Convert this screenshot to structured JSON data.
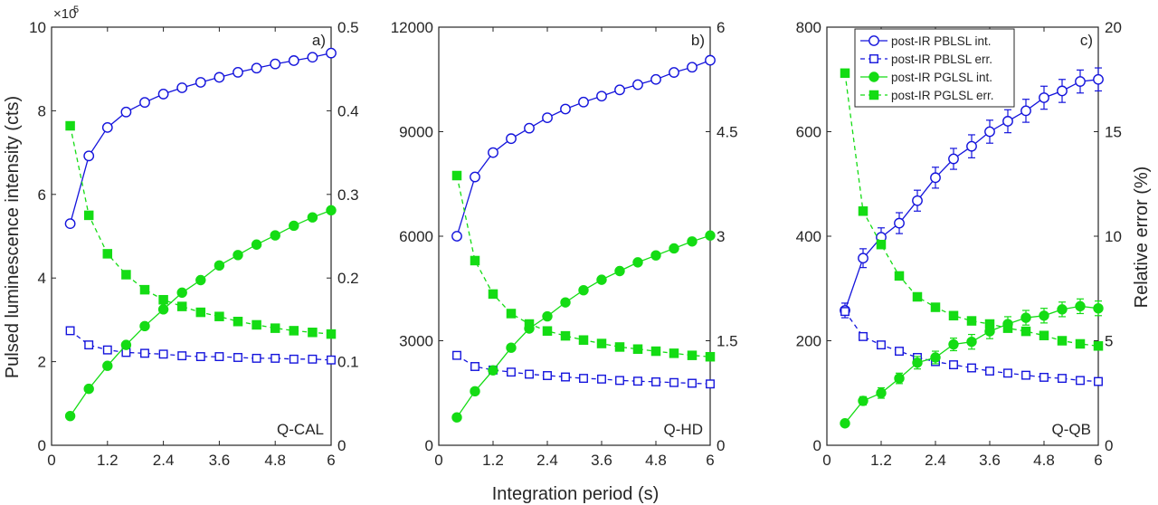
{
  "figure": {
    "xlabel": "Integration period (s)",
    "ylabel_left": "Pulsed luminescence intensity (cts)",
    "ylabel_right": "Relative error (%)"
  },
  "colors": {
    "blue": "#1414dc",
    "green": "#14dc14",
    "axis": "#262626"
  },
  "legend": [
    "post-IR PBLSL int.",
    "post-IR PBLSL err.",
    "post-IR PGLSL int.",
    "post-IR PGLSL err."
  ],
  "chart_data": [
    {
      "type": "line",
      "panel_label": "a)",
      "sample": "Q-CAL",
      "x": [
        0.4,
        0.8,
        1.2,
        1.6,
        2.0,
        2.4,
        2.8,
        3.2,
        3.6,
        4.0,
        4.4,
        4.8,
        5.2,
        5.6,
        6.0
      ],
      "xlim": [
        0,
        6
      ],
      "xticks": [
        0,
        1.2,
        2.4,
        3.6,
        4.8,
        6
      ],
      "xticklabels": [
        "0",
        "1.2",
        "2.4",
        "3.6",
        "4.8",
        "6"
      ],
      "ylim_left": [
        0,
        10
      ],
      "yticks_left": [
        0,
        2,
        4,
        6,
        8,
        10
      ],
      "yticklabels_left": [
        "0",
        "2",
        "4",
        "6",
        "8",
        "10"
      ],
      "left_multiplier": "×10",
      "left_exponent": "5",
      "ylim_right": [
        0,
        0.5
      ],
      "yticks_right": [
        0,
        0.1,
        0.2,
        0.3,
        0.4,
        0.5
      ],
      "yticklabels_right": [
        "0",
        "0.1",
        "0.2",
        "0.3",
        "0.4",
        "0.5"
      ],
      "series": [
        {
          "name": "post-IR PBLSL int.",
          "axis": "left",
          "color": "blue",
          "dash": false,
          "marker": "circle-open",
          "values": [
            5.3,
            6.92,
            7.6,
            7.97,
            8.2,
            8.4,
            8.55,
            8.68,
            8.8,
            8.92,
            9.02,
            9.12,
            9.2,
            9.28,
            9.38
          ]
        },
        {
          "name": "post-IR PBLSL err.",
          "axis": "right",
          "color": "blue",
          "dash": true,
          "marker": "square-open",
          "values": [
            0.137,
            0.12,
            0.114,
            0.111,
            0.11,
            0.109,
            0.107,
            0.106,
            0.106,
            0.105,
            0.104,
            0.104,
            0.103,
            0.103,
            0.102
          ]
        },
        {
          "name": "post-IR PGLSL int.",
          "axis": "left",
          "color": "green",
          "dash": false,
          "marker": "circle-filled",
          "values": [
            0.7,
            1.35,
            1.9,
            2.4,
            2.85,
            3.25,
            3.65,
            3.95,
            4.3,
            4.55,
            4.8,
            5.02,
            5.25,
            5.45,
            5.62
          ]
        },
        {
          "name": "post-IR PGLSL err.",
          "axis": "right",
          "color": "green",
          "dash": true,
          "marker": "square-filled",
          "values": [
            0.382,
            0.275,
            0.229,
            0.204,
            0.186,
            0.174,
            0.166,
            0.159,
            0.154,
            0.148,
            0.144,
            0.14,
            0.137,
            0.135,
            0.133
          ]
        }
      ]
    },
    {
      "type": "line",
      "panel_label": "b)",
      "sample": "Q-HD",
      "x": [
        0.4,
        0.8,
        1.2,
        1.6,
        2.0,
        2.4,
        2.8,
        3.2,
        3.6,
        4.0,
        4.4,
        4.8,
        5.2,
        5.6,
        6.0
      ],
      "xlim": [
        0,
        6
      ],
      "xticks": [
        0,
        1.2,
        2.4,
        3.6,
        4.8,
        6
      ],
      "xticklabels": [
        "0",
        "1.2",
        "2.4",
        "3.6",
        "4.8",
        "6"
      ],
      "ylim_left": [
        0,
        12000
      ],
      "yticks_left": [
        0,
        3000,
        6000,
        9000,
        12000
      ],
      "yticklabels_left": [
        "0",
        "3000",
        "6000",
        "9000",
        "12000"
      ],
      "ylim_right": [
        0,
        6
      ],
      "yticks_right": [
        0,
        1.5,
        3,
        4.5,
        6
      ],
      "yticklabels_right": [
        "0",
        "1.5",
        "3",
        "4.5",
        "6"
      ],
      "series": [
        {
          "name": "post-IR PBLSL int.",
          "axis": "left",
          "color": "blue",
          "dash": false,
          "marker": "circle-open",
          "values": [
            6000,
            7700,
            8400,
            8800,
            9100,
            9400,
            9650,
            9850,
            10020,
            10200,
            10350,
            10500,
            10700,
            10850,
            11050
          ]
        },
        {
          "name": "post-IR PBLSL err.",
          "axis": "right",
          "color": "blue",
          "dash": true,
          "marker": "square-open",
          "values": [
            1.29,
            1.13,
            1.08,
            1.05,
            1.02,
            1.0,
            0.98,
            0.96,
            0.95,
            0.93,
            0.92,
            0.91,
            0.9,
            0.89,
            0.88
          ]
        },
        {
          "name": "post-IR PGLSL int.",
          "axis": "left",
          "color": "green",
          "dash": false,
          "marker": "circle-filled",
          "values": [
            800,
            1550,
            2150,
            2800,
            3350,
            3700,
            4100,
            4450,
            4750,
            5000,
            5250,
            5450,
            5650,
            5850,
            6020
          ]
        },
        {
          "name": "post-IR PGLSL err.",
          "axis": "right",
          "color": "green",
          "dash": true,
          "marker": "square-filled",
          "values": [
            3.87,
            2.65,
            2.17,
            1.89,
            1.74,
            1.64,
            1.57,
            1.51,
            1.46,
            1.41,
            1.38,
            1.35,
            1.32,
            1.29,
            1.27
          ]
        }
      ]
    },
    {
      "type": "line",
      "panel_label": "c)",
      "sample": "Q-QB",
      "x": [
        0.4,
        0.8,
        1.2,
        1.6,
        2.0,
        2.4,
        2.8,
        3.2,
        3.6,
        4.0,
        4.4,
        4.8,
        5.2,
        5.6,
        6.0
      ],
      "xlim": [
        0,
        6
      ],
      "xticks": [
        0,
        1.2,
        2.4,
        3.6,
        4.8,
        6
      ],
      "xticklabels": [
        "0",
        "1.2",
        "2.4",
        "3.6",
        "4.8",
        "6"
      ],
      "ylim_left": [
        0,
        800
      ],
      "yticks_left": [
        0,
        200,
        400,
        600,
        800
      ],
      "yticklabels_left": [
        "0",
        "200",
        "400",
        "600",
        "800"
      ],
      "ylim_right": [
        0,
        20
      ],
      "yticks_right": [
        0,
        5,
        10,
        15,
        20
      ],
      "yticklabels_right": [
        "0",
        "5",
        "10",
        "15",
        "20"
      ],
      "legend_location": "top-left",
      "series": [
        {
          "name": "post-IR PBLSL int.",
          "axis": "left",
          "color": "blue",
          "dash": false,
          "marker": "circle-open",
          "values": [
            258,
            358,
            398,
            425,
            468,
            512,
            548,
            572,
            600,
            620,
            640,
            665,
            678,
            696,
            700
          ],
          "errors": [
            14,
            18,
            18,
            20,
            20,
            20,
            20,
            22,
            22,
            22,
            22,
            22,
            22,
            22,
            22
          ]
        },
        {
          "name": "post-IR PBLSL err.",
          "axis": "right",
          "color": "blue",
          "dash": true,
          "marker": "square-open",
          "values": [
            6.4,
            5.2,
            4.8,
            4.5,
            4.2,
            4.0,
            3.85,
            3.7,
            3.55,
            3.45,
            3.35,
            3.25,
            3.2,
            3.1,
            3.05
          ]
        },
        {
          "name": "post-IR PGLSL int.",
          "axis": "left",
          "color": "green",
          "dash": false,
          "marker": "circle-filled",
          "values": [
            42,
            85,
            100,
            128,
            158,
            168,
            193,
            198,
            218,
            232,
            244,
            248,
            260,
            266,
            262
          ],
          "errors": [
            6,
            8,
            10,
            10,
            12,
            12,
            12,
            14,
            14,
            14,
            14,
            14,
            14,
            14,
            14
          ]
        },
        {
          "name": "post-IR PGLSL err.",
          "axis": "right",
          "color": "green",
          "dash": true,
          "marker": "square-filled",
          "values": [
            17.8,
            11.2,
            9.6,
            8.1,
            7.1,
            6.6,
            6.2,
            5.95,
            5.8,
            5.6,
            5.45,
            5.25,
            5.0,
            4.85,
            4.75
          ]
        }
      ]
    }
  ]
}
